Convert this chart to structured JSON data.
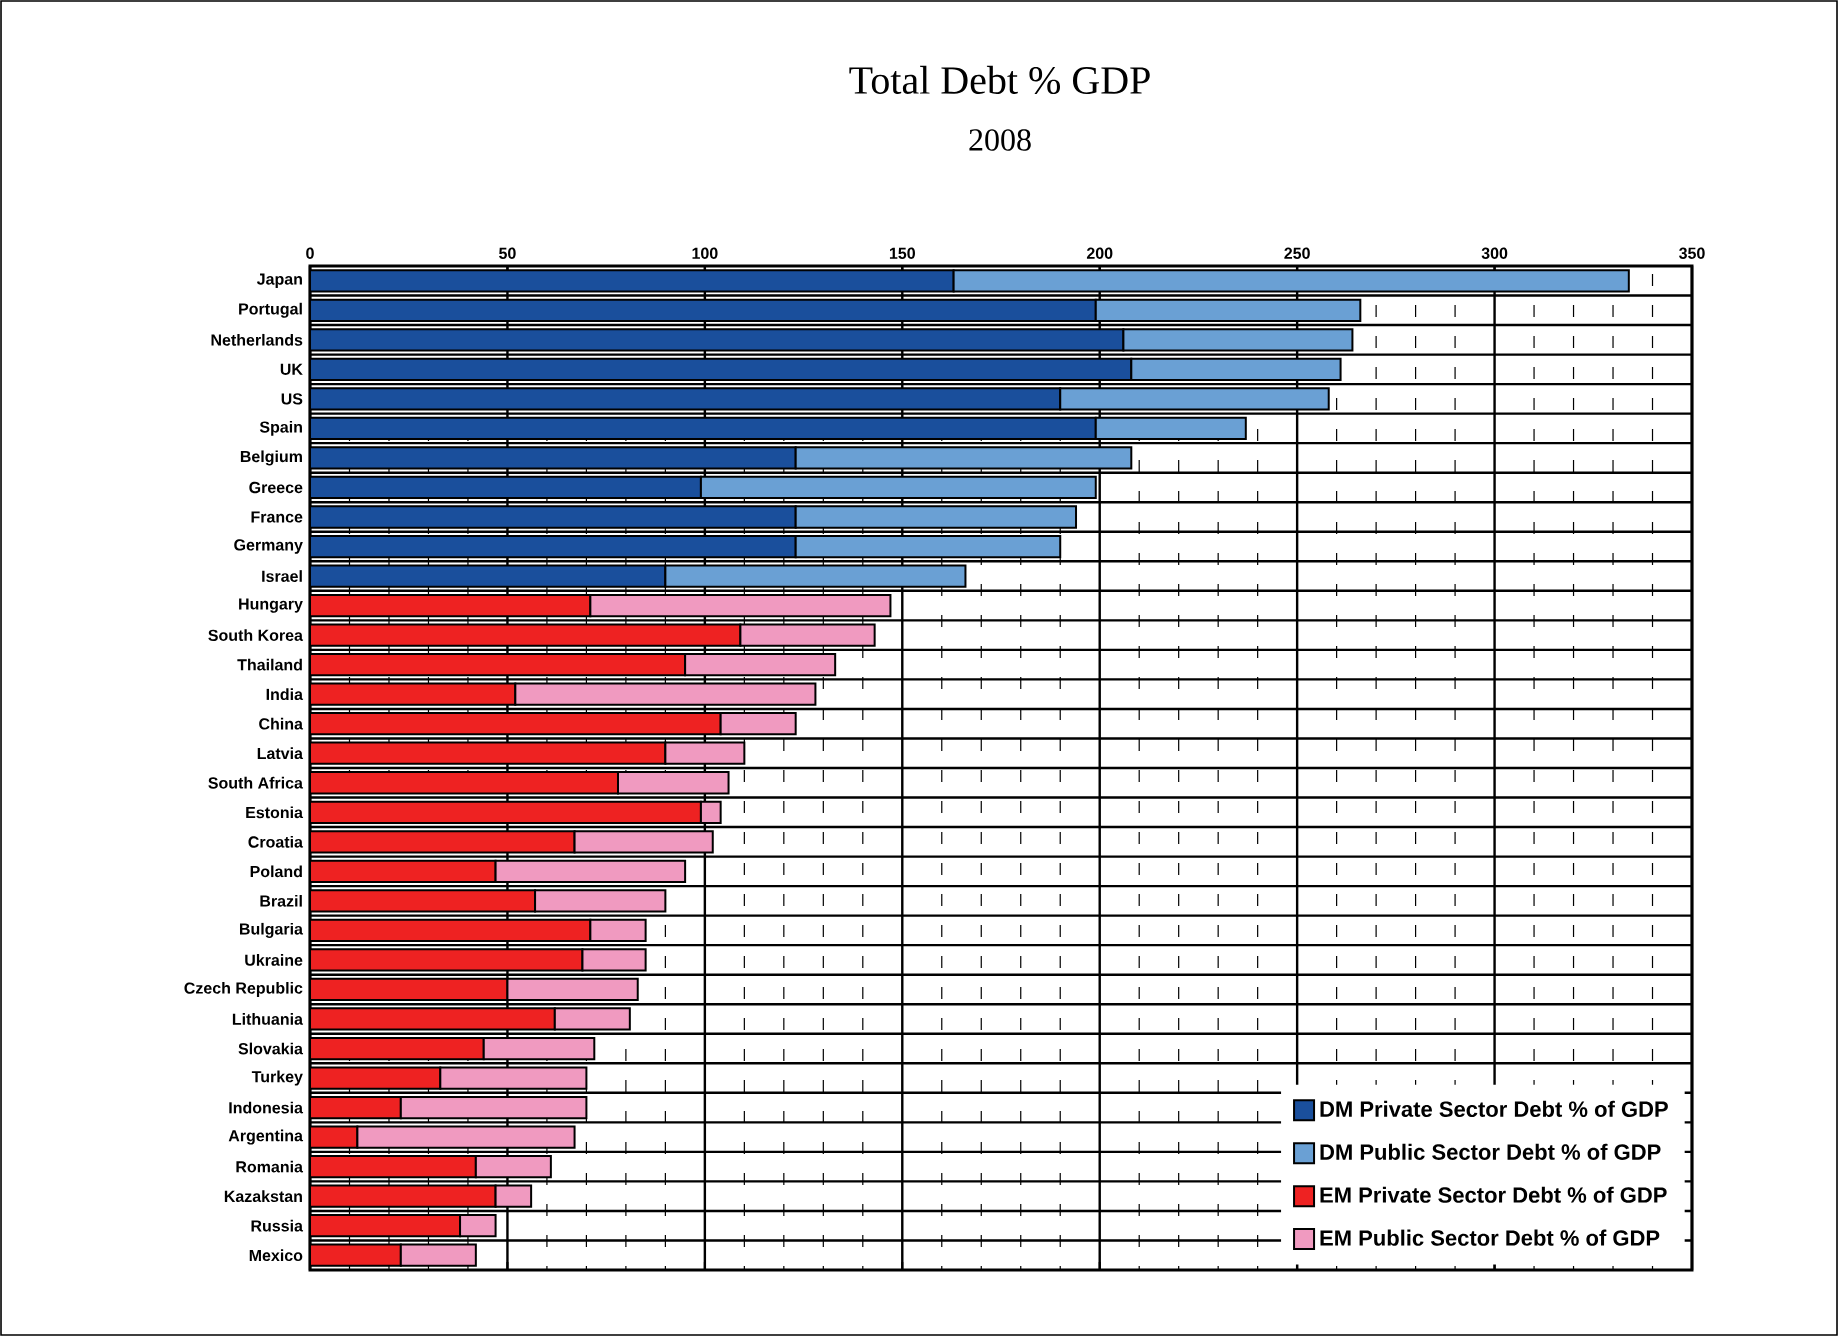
{
  "chart_data": {
    "type": "bar",
    "orientation": "horizontal",
    "stacked": true,
    "title": "Total Debt % GDP",
    "subtitle": "2008",
    "categories": [
      "Japan",
      "Portugal",
      "Netherlands",
      "UK",
      "US",
      "Spain",
      "Belgium",
      "Greece",
      "France",
      "Germany",
      "Israel",
      "Hungary",
      "South Korea",
      "Thailand",
      "India",
      "China",
      "Latvia",
      "South Africa",
      "Estonia",
      "Croatia",
      "Poland",
      "Brazil",
      "Bulgaria",
      "Ukraine",
      "Czech Republic",
      "Lithuania",
      "Slovakia",
      "Turkey",
      "Indonesia",
      "Argentina",
      "Romania",
      "Kazakstan",
      "Russia",
      "Mexico"
    ],
    "series": [
      {
        "name": "DM Private Sector Debt % of GDP",
        "color": "#1a4f9c",
        "values": [
          163,
          199,
          206,
          208,
          190,
          199,
          123,
          99,
          123,
          123,
          90,
          null,
          null,
          null,
          null,
          null,
          null,
          null,
          null,
          null,
          null,
          null,
          null,
          null,
          null,
          null,
          null,
          null,
          null,
          null,
          null,
          null,
          null,
          null
        ]
      },
      {
        "name": "DM Public Sector Debt % of GDP",
        "color": "#6aa0d4",
        "values": [
          171,
          67,
          58,
          53,
          68,
          38,
          85,
          100,
          71,
          67,
          76,
          null,
          null,
          null,
          null,
          null,
          null,
          null,
          null,
          null,
          null,
          null,
          null,
          null,
          null,
          null,
          null,
          null,
          null,
          null,
          null,
          null,
          null,
          null
        ]
      },
      {
        "name": "EM Private Sector Debt % of GDP",
        "color": "#ee2222",
        "values": [
          null,
          null,
          null,
          null,
          null,
          null,
          null,
          null,
          null,
          null,
          null,
          71,
          109,
          95,
          52,
          104,
          90,
          78,
          99,
          67,
          47,
          57,
          71,
          69,
          50,
          62,
          44,
          33,
          23,
          12,
          42,
          47,
          38,
          23
        ]
      },
      {
        "name": "EM Public Sector Debt % of GDP",
        "color": "#f09ac0",
        "values": [
          null,
          null,
          null,
          null,
          null,
          null,
          null,
          null,
          null,
          null,
          null,
          76,
          34,
          38,
          76,
          19,
          20,
          28,
          5,
          35,
          48,
          33,
          14,
          16,
          33,
          19,
          28,
          37,
          47,
          55,
          19,
          9,
          9,
          19
        ]
      }
    ],
    "xlim": [
      0,
      350
    ],
    "xticks": [
      0,
      50,
      100,
      150,
      200,
      250,
      300,
      350
    ],
    "grid": true,
    "legend": "bottom right"
  }
}
